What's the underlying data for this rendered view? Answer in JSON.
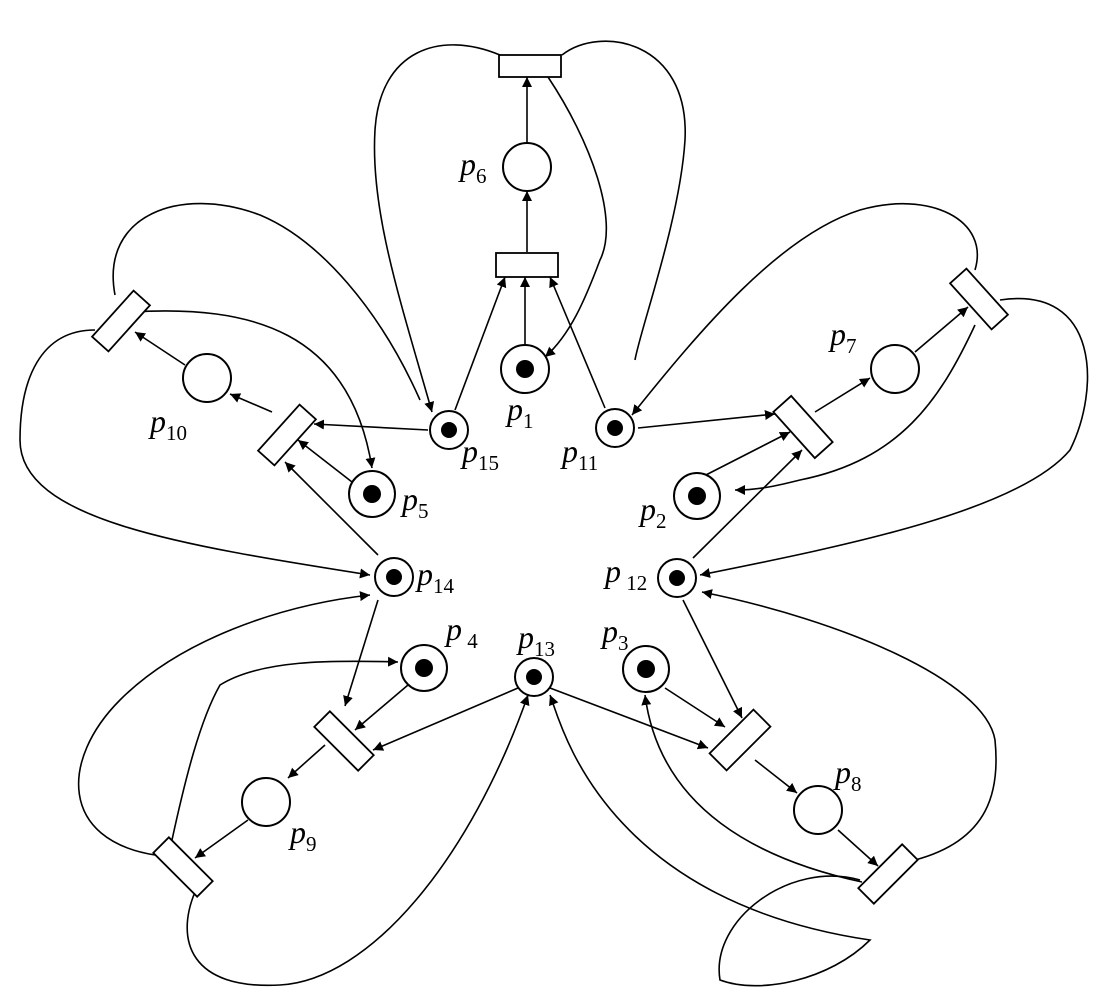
{
  "places": [
    {
      "id": "p1",
      "name": "p",
      "sub": "1",
      "token": true
    },
    {
      "id": "p2",
      "name": "p",
      "sub": "2",
      "token": true
    },
    {
      "id": "p3",
      "name": "p",
      "sub": "3",
      "token": true
    },
    {
      "id": "p4",
      "name": "p",
      "sub": " 4",
      "token": true
    },
    {
      "id": "p5",
      "name": "p",
      "sub": "5",
      "token": true
    },
    {
      "id": "p6",
      "name": "p",
      "sub": "6",
      "token": false
    },
    {
      "id": "p7",
      "name": "p",
      "sub": "7",
      "token": false
    },
    {
      "id": "p8",
      "name": "p",
      "sub": "8",
      "token": false
    },
    {
      "id": "p9",
      "name": "p",
      "sub": "9",
      "token": false
    },
    {
      "id": "p10",
      "name": "p",
      "sub": "10",
      "token": false
    },
    {
      "id": "p11",
      "name": "p",
      "sub": "11",
      "token": true
    },
    {
      "id": "p12",
      "name": "p",
      "sub": " 12",
      "token": true
    },
    {
      "id": "p13",
      "name": "p",
      "sub": "13",
      "token": true
    },
    {
      "id": "p14",
      "name": "p",
      "sub": "14",
      "token": true
    },
    {
      "id": "p15",
      "name": "p",
      "sub": "15",
      "token": true
    }
  ],
  "transitions": [
    "t-top-upper",
    "t-top-lower",
    "t-left-upper",
    "t-left-lower",
    "t-right-upper",
    "t-right-lower",
    "t-bottom-left-upper",
    "t-bottom-left-lower",
    "t-bottom-right-upper",
    "t-bottom-right-lower"
  ]
}
